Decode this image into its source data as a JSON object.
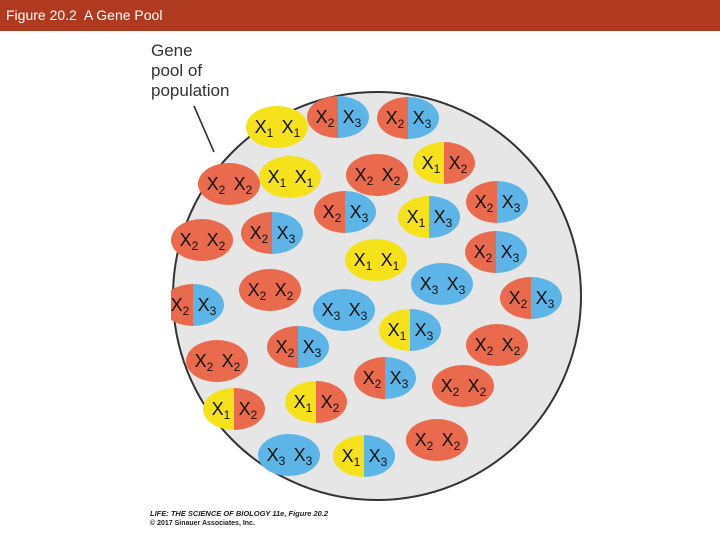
{
  "header": {
    "title": "Figure 20.2  A Gene Pool"
  },
  "pool_label": {
    "line1": "Gene",
    "line2": "pool of",
    "line3": "population"
  },
  "colors": {
    "X1": "#f5e21a",
    "X2": "#e96a4c",
    "X3": "#5cb5e6",
    "pool_fill": "#e6e6e6",
    "header": "#b03a1f"
  },
  "genotypes": [
    {
      "a": "X",
      "as": "1",
      "b": "X",
      "bs": "1"
    },
    {
      "a": "X",
      "as": "2",
      "b": "X",
      "bs": "3"
    },
    {
      "a": "X",
      "as": "2",
      "b": "X",
      "bs": "3"
    },
    {
      "a": "X",
      "as": "1",
      "b": "X",
      "bs": "1"
    },
    {
      "a": "X",
      "as": "2",
      "b": "X",
      "bs": "2"
    },
    {
      "a": "X",
      "as": "1",
      "b": "X",
      "bs": "2"
    },
    {
      "a": "X",
      "as": "2",
      "b": "X",
      "bs": "2"
    },
    {
      "a": "X",
      "as": "2",
      "b": "X",
      "bs": "3"
    },
    {
      "a": "X",
      "as": "2",
      "b": "X",
      "bs": "3"
    },
    {
      "a": "X",
      "as": "1",
      "b": "X",
      "bs": "3"
    },
    {
      "a": "X",
      "as": "2",
      "b": "X",
      "bs": "3"
    },
    {
      "a": "X",
      "as": "2",
      "b": "X",
      "bs": "2"
    },
    {
      "a": "X",
      "as": "2",
      "b": "X",
      "bs": "3"
    },
    {
      "a": "X",
      "as": "1",
      "b": "X",
      "bs": "1"
    },
    {
      "a": "X",
      "as": "2",
      "b": "X",
      "bs": "2"
    },
    {
      "a": "X",
      "as": "2",
      "b": "X",
      "bs": "3"
    },
    {
      "a": "X",
      "as": "3",
      "b": "X",
      "bs": "3"
    },
    {
      "a": "X",
      "as": "2",
      "b": "X",
      "bs": "3"
    },
    {
      "a": "X",
      "as": "3",
      "b": "X",
      "bs": "3"
    },
    {
      "a": "X",
      "as": "1",
      "b": "X",
      "bs": "3"
    },
    {
      "a": "X",
      "as": "2",
      "b": "X",
      "bs": "2"
    },
    {
      "a": "X",
      "as": "2",
      "b": "X",
      "bs": "3"
    },
    {
      "a": "X",
      "as": "2",
      "b": "X",
      "bs": "2"
    },
    {
      "a": "X",
      "as": "2",
      "b": "X",
      "bs": "3"
    },
    {
      "a": "X",
      "as": "2",
      "b": "X",
      "bs": "2"
    },
    {
      "a": "X",
      "as": "1",
      "b": "X",
      "bs": "2"
    },
    {
      "a": "X",
      "as": "1",
      "b": "X",
      "bs": "2"
    },
    {
      "a": "X",
      "as": "2",
      "b": "X",
      "bs": "2"
    },
    {
      "a": "X",
      "as": "3",
      "b": "X",
      "bs": "3"
    },
    {
      "a": "X",
      "as": "1",
      "b": "X",
      "bs": "3"
    },
    {
      "a": "X",
      "as": "2",
      "b": "X",
      "bs": "2"
    }
  ],
  "credit": {
    "line1": "LIFE: THE SCIENCE OF BIOLOGY 11e, Figure 20.2",
    "line2": "© 2017 Sinauer Associates, Inc."
  }
}
